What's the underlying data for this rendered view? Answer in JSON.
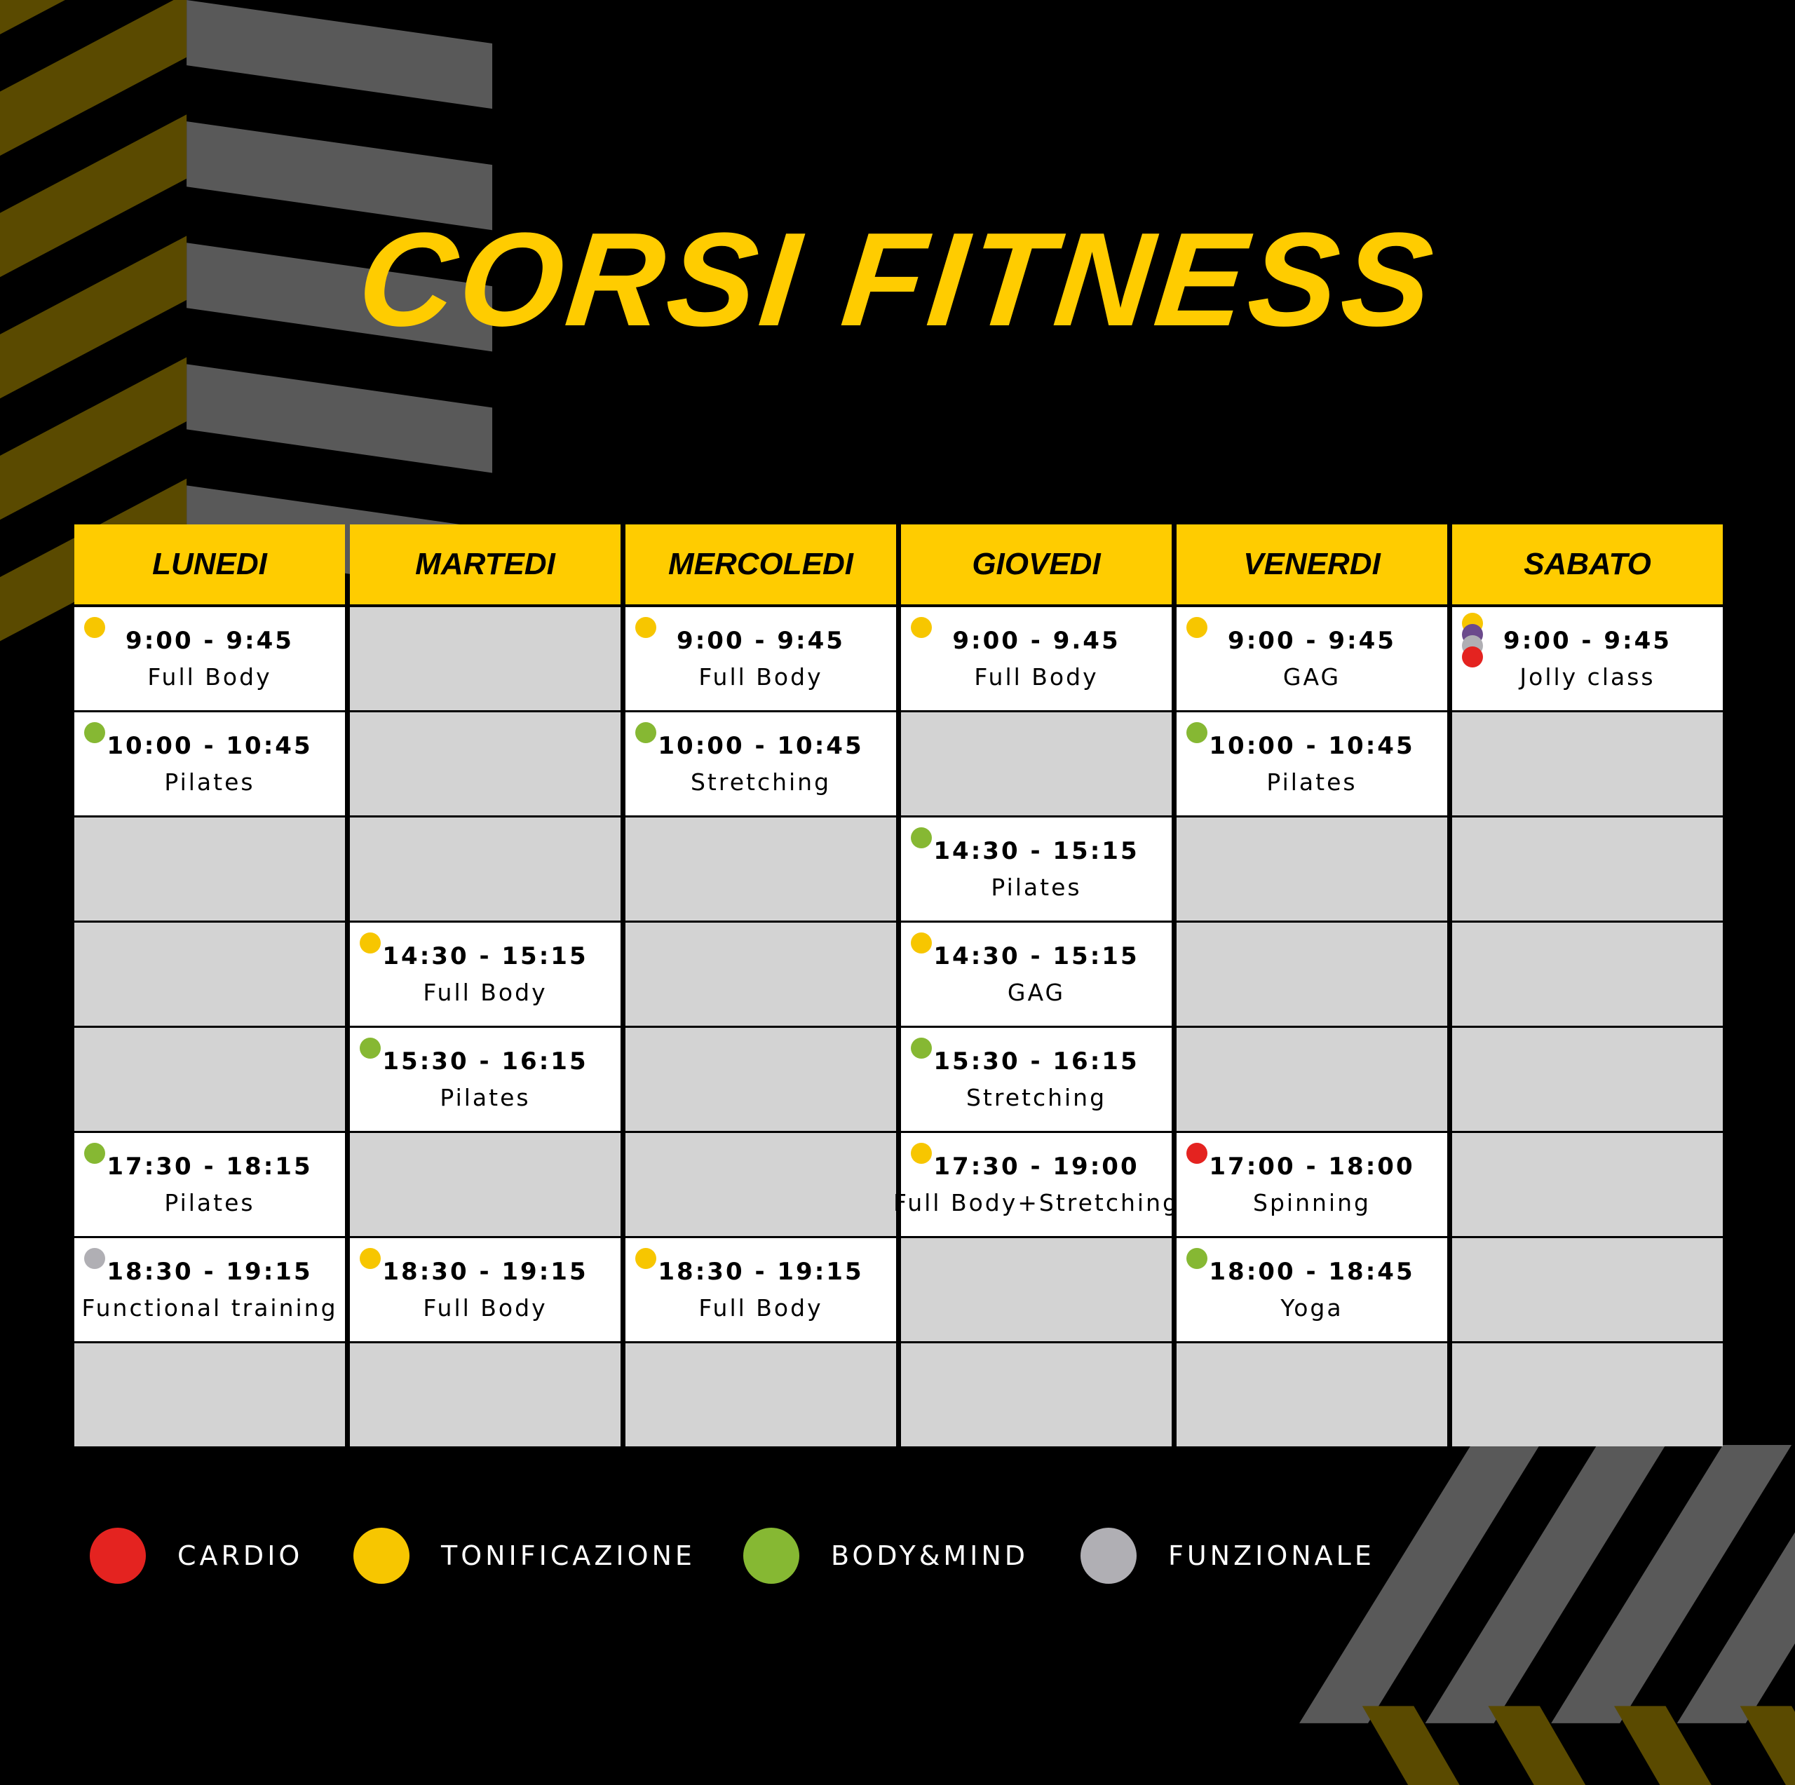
{
  "title": "CORSI FITNESS",
  "days": [
    "LUNEDI",
    "MARTEDI",
    "MERCOLEDI",
    "GIOVEDI",
    "VENERDI",
    "SABATO"
  ],
  "schedule": {
    "rows": [
      [
        {
          "time": "9:00 - 9:45",
          "name": "Full Body",
          "dots": [
            "#f7c600"
          ]
        },
        null,
        {
          "time": "9:00 - 9:45",
          "name": "Full Body",
          "dots": [
            "#f7c600"
          ]
        },
        {
          "time": "9:00 - 9.45",
          "name": "Full Body",
          "dots": [
            "#f7c600"
          ]
        },
        {
          "time": "9:00 - 9:45",
          "name": "GAG",
          "dots": [
            "#f7c600"
          ]
        },
        {
          "time": "9:00 - 9:45",
          "name": "Jolly class",
          "dots": [
            "#f7c600",
            "#6b4a8c",
            "#b0afb4",
            "#e42320"
          ]
        }
      ],
      [
        {
          "time": "10:00 - 10:45",
          "name": "Pilates",
          "dots": [
            "#86b833"
          ]
        },
        null,
        {
          "time": "10:00 - 10:45",
          "name": "Stretching",
          "dots": [
            "#86b833"
          ]
        },
        null,
        {
          "time": "10:00 - 10:45",
          "name": "Pilates",
          "dots": [
            "#86b833"
          ]
        },
        null
      ],
      [
        null,
        null,
        null,
        {
          "time": "14:30 - 15:15",
          "name": "Pilates",
          "dots": [
            "#86b833"
          ]
        },
        null,
        null
      ],
      [
        null,
        {
          "time": "14:30 - 15:15",
          "name": "Full Body",
          "dots": [
            "#f7c600"
          ]
        },
        null,
        {
          "time": "14:30 - 15:15",
          "name": "GAG",
          "dots": [
            "#f7c600"
          ]
        },
        null,
        null
      ],
      [
        null,
        {
          "time": "15:30 - 16:15",
          "name": "Pilates",
          "dots": [
            "#86b833"
          ]
        },
        null,
        {
          "time": "15:30 - 16:15",
          "name": "Stretching",
          "dots": [
            "#86b833"
          ]
        },
        null,
        null
      ],
      [
        {
          "time": "17:30 - 18:15",
          "name": "Pilates",
          "dots": [
            "#86b833"
          ]
        },
        null,
        null,
        {
          "time": "17:30 - 19:00",
          "name": "Full Body+Stretching",
          "dots": [
            "#f7c600"
          ]
        },
        {
          "time": "17:00 - 18:00",
          "name": "Spinning",
          "dots": [
            "#e42320"
          ]
        },
        null
      ],
      [
        {
          "time": "18:30 - 19:15",
          "name": "Functional training",
          "dots": [
            "#b0afb4"
          ]
        },
        {
          "time": "18:30 - 19:15",
          "name": "Full Body",
          "dots": [
            "#f7c600"
          ]
        },
        {
          "time": "18:30 - 19:15",
          "name": "Full Body",
          "dots": [
            "#f7c600"
          ]
        },
        null,
        {
          "time": "18:00 - 18:45",
          "name": "Yoga",
          "dots": [
            "#86b833"
          ]
        },
        null
      ],
      [
        null,
        null,
        null,
        null,
        null,
        null
      ]
    ]
  },
  "legend": [
    {
      "label": "CARDIO",
      "color": "#e42320"
    },
    {
      "label": "TONIFICAZIONE",
      "color": "#f7c600"
    },
    {
      "label": "BODY&MIND",
      "color": "#86b833"
    },
    {
      "label": "FUNZIONALE",
      "color": "#b0afb4"
    }
  ]
}
